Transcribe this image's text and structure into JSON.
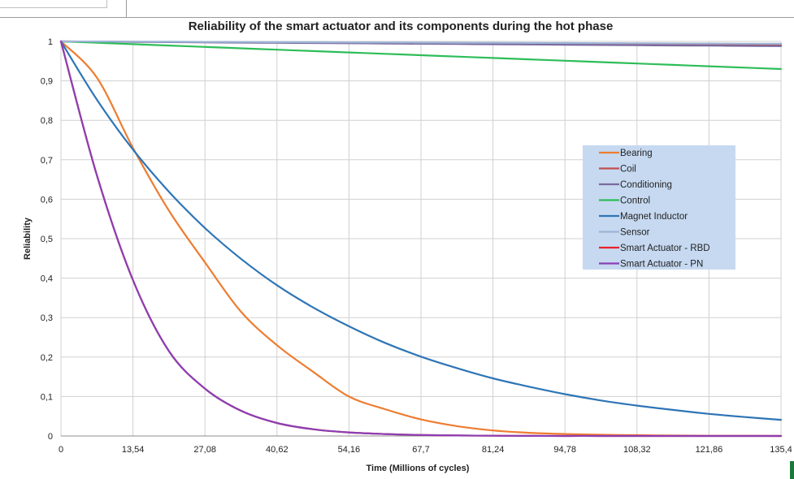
{
  "chart_data": {
    "type": "line",
    "title": "Reliability of the smart actuator and its components during the hot phase",
    "xlabel": "Time (Millions of cycles)",
    "ylabel": "Reliability",
    "xlim": [
      0,
      135.4
    ],
    "ylim": [
      0,
      1
    ],
    "x_ticks": [
      "0",
      "13,54",
      "27,08",
      "40,62",
      "54,16",
      "67,7",
      "81,24",
      "94,78",
      "108,32",
      "121,86",
      "135,4"
    ],
    "y_ticks": [
      "0",
      "0,1",
      "0,2",
      "0,3",
      "0,4",
      "0,5",
      "0,6",
      "0,7",
      "0,8",
      "0,9",
      "1"
    ],
    "grid": true,
    "legend_position": "right-center",
    "x": [
      0,
      6.77,
      13.54,
      20.31,
      27.08,
      33.85,
      40.62,
      47.39,
      54.16,
      60.93,
      67.7,
      74.47,
      81.24,
      88.01,
      94.78,
      101.55,
      108.32,
      115.09,
      121.86,
      128.63,
      135.4
    ],
    "series": [
      {
        "name": "Bearing",
        "color": "#ED7D31",
        "values": [
          1.0,
          0.908,
          0.73,
          0.571,
          0.44,
          0.315,
          0.23,
          0.163,
          0.1,
          0.068,
          0.042,
          0.025,
          0.014,
          0.008,
          0.005,
          0.003,
          0.002,
          0.001,
          0.0005,
          0.0002,
          0.0001
        ]
      },
      {
        "name": "Coil",
        "color": "#C0504D",
        "values": [
          1.0,
          0.9995,
          0.999,
          0.9985,
          0.998,
          0.9975,
          0.997,
          0.9965,
          0.996,
          0.9955,
          0.995,
          0.9945,
          0.994,
          0.9935,
          0.993,
          0.9925,
          0.992,
          0.9915,
          0.991,
          0.9905,
          0.99
        ]
      },
      {
        "name": "Conditioning",
        "color": "#7A6A9E",
        "values": [
          1.0,
          0.9994,
          0.9988,
          0.9982,
          0.9976,
          0.997,
          0.9964,
          0.9958,
          0.9952,
          0.9946,
          0.994,
          0.9934,
          0.9928,
          0.9922,
          0.9916,
          0.991,
          0.9904,
          0.9898,
          0.9892,
          0.9886,
          0.988
        ]
      },
      {
        "name": "Control",
        "color": "#2EBD59",
        "values": [
          1.0,
          0.9965,
          0.993,
          0.9895,
          0.986,
          0.9825,
          0.979,
          0.9755,
          0.972,
          0.9685,
          0.965,
          0.9615,
          0.958,
          0.9545,
          0.951,
          0.9475,
          0.944,
          0.9405,
          0.937,
          0.9335,
          0.93
        ]
      },
      {
        "name": "Magnet Inductor",
        "color": "#2E75B6",
        "values": [
          1.0,
          0.852,
          0.726,
          0.619,
          0.527,
          0.449,
          0.382,
          0.326,
          0.278,
          0.236,
          0.201,
          0.172,
          0.146,
          0.125,
          0.106,
          0.09,
          0.077,
          0.066,
          0.056,
          0.048,
          0.041
        ]
      },
      {
        "name": "Sensor",
        "color": "#9DB4D6",
        "values": [
          1.0,
          0.9997,
          0.9994,
          0.9991,
          0.9988,
          0.9985,
          0.9982,
          0.9979,
          0.9976,
          0.9973,
          0.997,
          0.9967,
          0.9964,
          0.9961,
          0.9958,
          0.9955,
          0.9952,
          0.9949,
          0.9946,
          0.9943,
          0.994
        ]
      },
      {
        "name": "Smart Actuator - RBD",
        "color": "#E8212B",
        "values": [
          1.0,
          0.66,
          0.395,
          0.215,
          0.12,
          0.064,
          0.033,
          0.017,
          0.009,
          0.005,
          0.0025,
          0.0013,
          0.0006,
          0.0003,
          0.0001,
          0.0001,
          0,
          0,
          0,
          0,
          0
        ]
      },
      {
        "name": "Smart Actuator - PN",
        "color": "#8B3FB4",
        "values": [
          1.0,
          0.66,
          0.395,
          0.215,
          0.12,
          0.064,
          0.033,
          0.017,
          0.009,
          0.005,
          0.0025,
          0.0013,
          0.0006,
          0.0003,
          0.0001,
          0.0001,
          0,
          0,
          0,
          0,
          0
        ]
      }
    ]
  }
}
